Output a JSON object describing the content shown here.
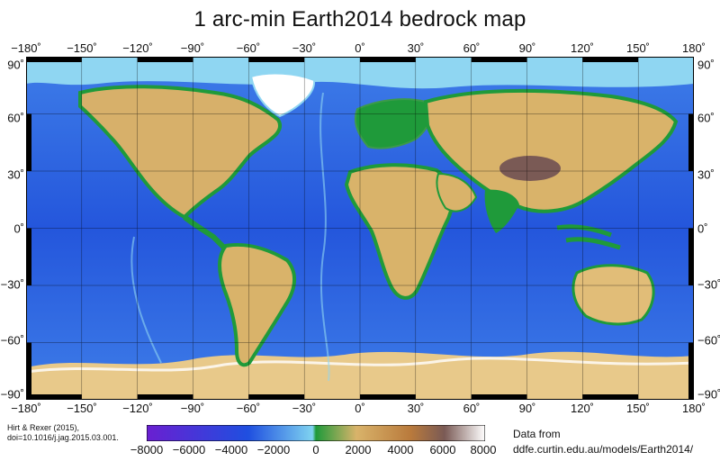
{
  "title": "1 arc-min Earth2014 bedrock map",
  "longitude_labels": [
    "−180˚",
    "−150˚",
    "−120˚",
    "−90˚",
    "−60˚",
    "−30˚",
    "0˚",
    "30˚",
    "60˚",
    "90˚",
    "120˚",
    "150˚",
    "180˚"
  ],
  "latitude_labels": [
    "90˚",
    "60˚",
    "30˚",
    "0˚",
    "−30˚",
    "−60˚",
    "−90˚"
  ],
  "colorbar": {
    "ticks": [
      "−8000",
      "−6000",
      "−4000",
      "−2000",
      "0",
      "2000",
      "4000",
      "6000",
      "8000"
    ],
    "range": [
      -8000,
      8000
    ],
    "colors": {
      "deep_ocean": "#6a1fd1",
      "ocean": "#1f4fe0",
      "shelf": "#7fd3f0",
      "lowland": "#1f9a3a",
      "upland": "#d9b36a",
      "highland": "#b97a3c",
      "peak": "#7a5a55",
      "ice": "#ffffff"
    }
  },
  "credit": {
    "line1": "Hirt & Rexer (2015),",
    "line2": "doi=10.1016/j.jag.2015.03.001."
  },
  "source": {
    "line1": "Data from",
    "line2": "ddfe.curtin.edu.au/models/Earth2014/"
  }
}
